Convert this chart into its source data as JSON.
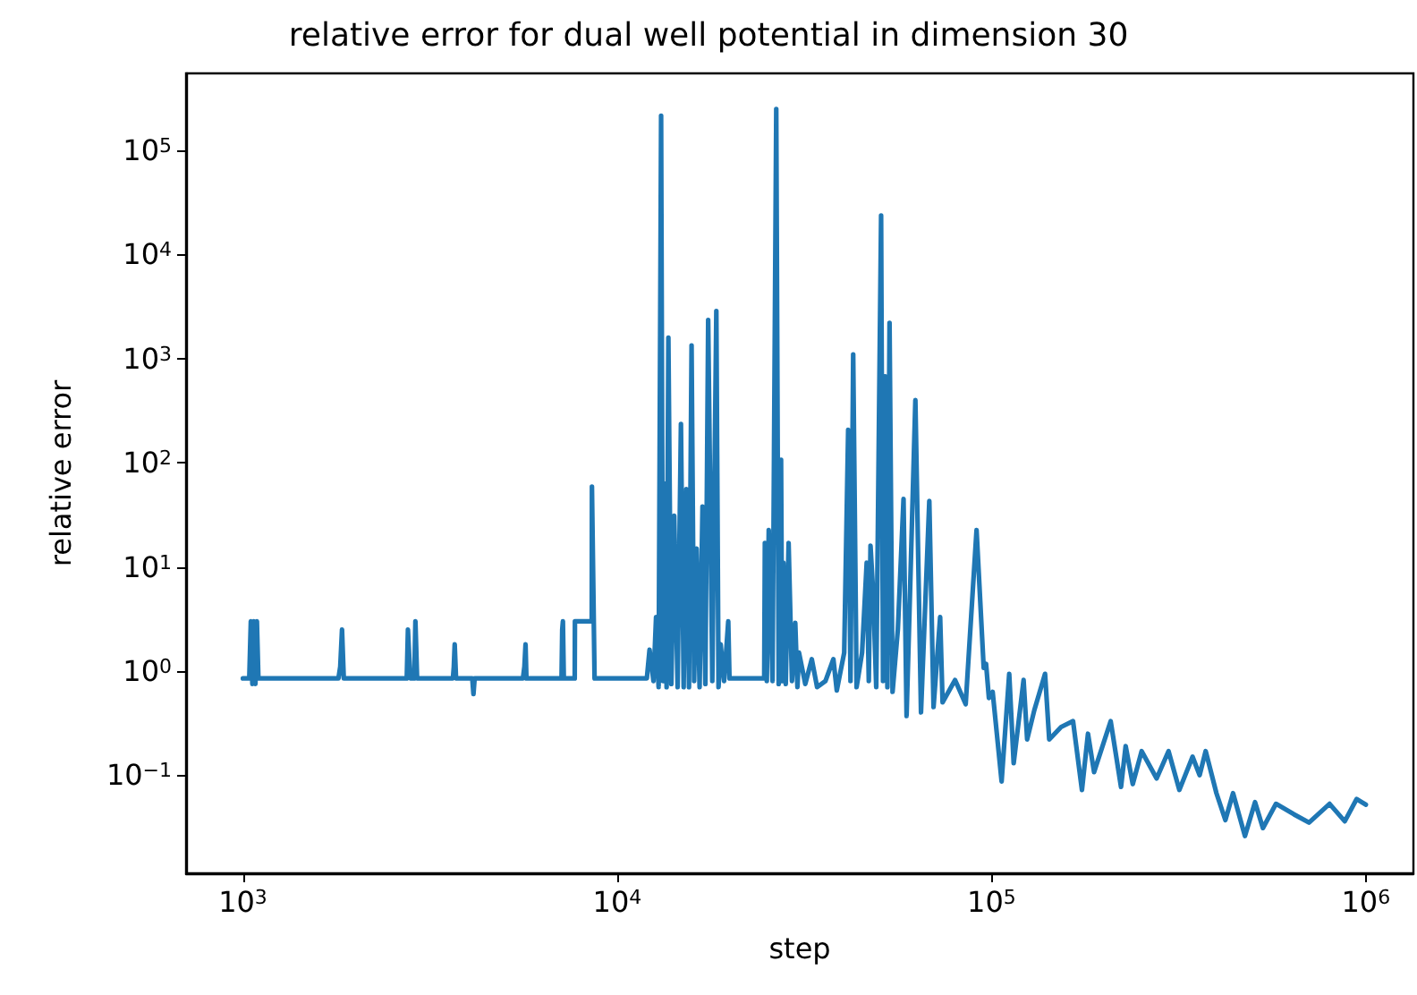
{
  "chart_data": {
    "type": "line",
    "title": "relative error for dual well potential in dimension 30",
    "xlabel": "step",
    "ylabel": "relative error",
    "log": "xy",
    "grid": false,
    "marker": "none",
    "line_style": "solid",
    "xlim": [
      705,
      1340000
    ],
    "ylim": [
      0.0114,
      550000
    ],
    "xticks": [
      {
        "value": 1000,
        "label": "10$^{3}$"
      },
      {
        "value": 10000,
        "label": "10$^{4}$"
      },
      {
        "value": 100000,
        "label": "10$^{5}$"
      },
      {
        "value": 1000000,
        "label": "10$^{6}$"
      }
    ],
    "yticks": [
      {
        "value": 0.1,
        "label": "10$^{−1}$"
      },
      {
        "value": 1,
        "label": "10$^{0}$"
      },
      {
        "value": 10,
        "label": "10$^{1}$"
      },
      {
        "value": 100,
        "label": "10$^{2}$"
      },
      {
        "value": 1000,
        "label": "10$^{3}$"
      },
      {
        "value": 10000,
        "label": "10$^{4}$"
      },
      {
        "value": 100000,
        "label": "10$^{5}$"
      }
    ],
    "series": [
      {
        "color": "#1f77b4",
        "x": [
          1000,
          1040,
          1050,
          1060,
          1070,
          1080,
          1090,
          1100,
          1800,
          1820,
          1840,
          1860,
          2740,
          2760,
          2800,
          2870,
          2890,
          2920,
          3640,
          3660,
          3680,
          3710,
          4100,
          4130,
          4160,
          5600,
          5650,
          5690,
          5720,
          7100,
          7130,
          7160,
          7200,
          7700,
          7710,
          8550,
          8560,
          8700,
          12000,
          12200,
          12500,
          12700,
          12900,
          13100,
          13250,
          13400,
          13550,
          13700,
          13950,
          14200,
          14500,
          14800,
          15050,
          15300,
          15550,
          15800,
          16050,
          16300,
          16600,
          16900,
          17200,
          17500,
          17950,
          18400,
          18650,
          18900,
          19300,
          19800,
          19950,
          24700,
          24800,
          25100,
          25400,
          26000,
          26600,
          27000,
          27400,
          27600,
          27800,
          28200,
          28700,
          29300,
          29900,
          30300,
          30600,
          31800,
          33100,
          34200,
          36000,
          37800,
          38600,
          40400,
          41400,
          42000,
          42700,
          43600,
          45100,
          46400,
          47000,
          47500,
          48300,
          49200,
          50700,
          51300,
          52000,
          52700,
          53400,
          54400,
          56200,
          58200,
          59300,
          62600,
          64800,
          68200,
          70000,
          72900,
          74000,
          79900,
          85300,
          91200,
          95300,
          96700,
          98400,
          100700,
          106400,
          111500,
          114600,
          121800,
          124500,
          130100,
          139000,
          142600,
          153400,
          165100,
          174400,
          181000,
          187900,
          208100,
          221800,
          228200,
          238400,
          251800,
          276100,
          297100,
          317500,
          344400,
          359700,
          373300,
          398900,
          421400,
          441800,
          475400,
          505800,
          530900,
          575400,
          642700,
          704700,
          800000,
          878400,
          944800,
          1000000
        ],
        "values": [
          0.85,
          0.85,
          3.0,
          0.75,
          3.0,
          0.75,
          3.0,
          0.85,
          0.85,
          1.1,
          2.5,
          0.85,
          0.85,
          2.5,
          0.85,
          0.85,
          3.0,
          0.85,
          0.85,
          1.1,
          1.8,
          0.85,
          0.85,
          0.6,
          0.85,
          0.85,
          1.1,
          1.8,
          0.85,
          0.85,
          2.5,
          3.0,
          0.85,
          0.85,
          3.0,
          3.0,
          59,
          0.85,
          0.85,
          1.6,
          0.8,
          3.3,
          0.7,
          216000,
          0.8,
          63,
          0.7,
          1590,
          0.75,
          31,
          0.7,
          236,
          0.7,
          56,
          0.7,
          1340,
          0.8,
          15,
          0.7,
          38,
          0.75,
          2350,
          0.8,
          2870,
          0.7,
          1.8,
          0.8,
          3.0,
          0.85,
          0.85,
          17,
          0.8,
          22.6,
          0.8,
          250000,
          0.75,
          107,
          0.8,
          11,
          0.75,
          17,
          0.8,
          2.9,
          0.7,
          1.5,
          0.75,
          1.3,
          0.7,
          0.8,
          1.3,
          0.65,
          1.5,
          207,
          0.8,
          1100,
          0.7,
          1.5,
          11,
          0.8,
          16,
          5.5,
          0.7,
          23700,
          0.8,
          676,
          0.7,
          2210,
          0.63,
          2.5,
          45,
          0.37,
          400,
          0.4,
          43,
          0.45,
          3.3,
          0.5,
          0.82,
          0.48,
          22.6,
          1.07,
          1.17,
          0.55,
          0.63,
          0.087,
          0.94,
          0.13,
          0.82,
          0.22,
          0.42,
          0.94,
          0.22,
          0.29,
          0.33,
          0.072,
          0.25,
          0.107,
          0.33,
          0.077,
          0.19,
          0.082,
          0.17,
          0.093,
          0.17,
          0.072,
          0.15,
          0.1,
          0.17,
          0.067,
          0.037,
          0.067,
          0.026,
          0.055,
          0.031,
          0.053,
          0.042,
          0.035,
          0.053,
          0.036,
          0.059,
          0.052
        ]
      }
    ]
  }
}
